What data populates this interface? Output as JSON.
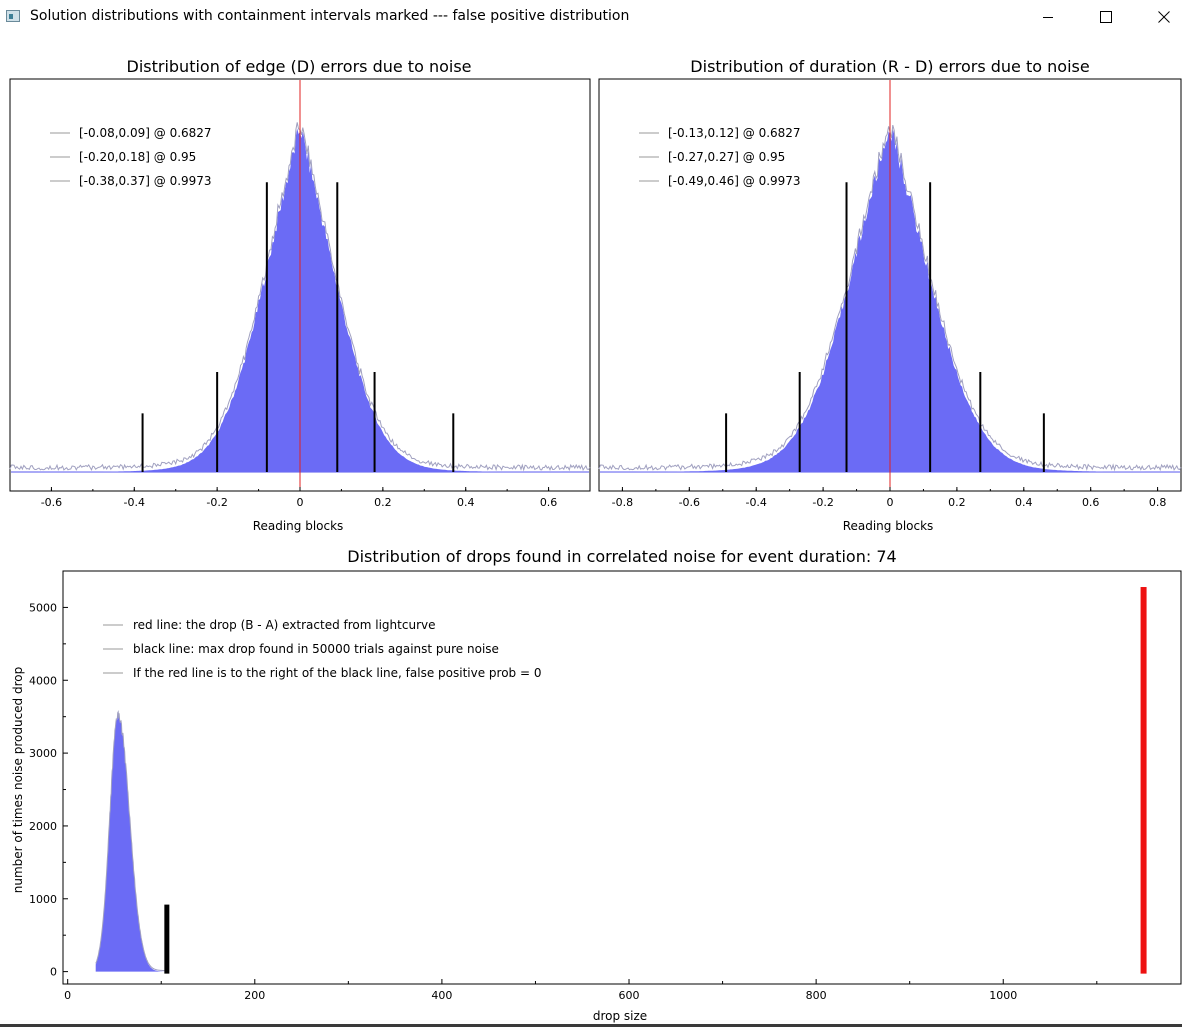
{
  "window": {
    "title": "Solution distributions with containment intervals marked --- false positive distribution",
    "controls": [
      "minimize-icon",
      "maximize-icon",
      "close-icon"
    ]
  },
  "chart_data": [
    {
      "type": "area",
      "title": "Distribution of edge (D) errors due to noise",
      "xlabel": "Reading blocks",
      "ylabel": "",
      "xlim": [
        -0.7,
        0.7
      ],
      "xticks": [
        "-0.6",
        "-0.4",
        "-0.2",
        "0",
        "0.2",
        "0.4",
        "0.6"
      ],
      "yticks": [],
      "legend_position": "top-left",
      "legend": [
        "[-0.08,0.09] @ 0.6827",
        "[-0.20,0.18] @ 0.95",
        "[-0.38,0.37] @ 0.9973"
      ],
      "distribution": {
        "center": 0.0,
        "sigma": 0.1,
        "peak": 1.0
      },
      "red_line_x": 0.0,
      "interval_lines": [
        {
          "x": -0.08,
          "height": 0.84
        },
        {
          "x": 0.09,
          "height": 0.84
        },
        {
          "x": -0.2,
          "height": 0.29
        },
        {
          "x": 0.18,
          "height": 0.29
        },
        {
          "x": -0.38,
          "height": 0.17
        },
        {
          "x": 0.37,
          "height": 0.17
        }
      ],
      "colors": {
        "fill": "#6b6bf5",
        "edge": "#a0a0c0",
        "interval": "#000000",
        "red_line": "#e02020",
        "baseline": "#5555ee"
      }
    },
    {
      "type": "area",
      "title": "Distribution of duration (R - D) errors due to noise",
      "xlabel": "Reading blocks",
      "ylabel": "",
      "xlim": [
        -0.87,
        0.87
      ],
      "xticks": [
        "-0.8",
        "-0.6",
        "-0.4",
        "-0.2",
        "0",
        "0.2",
        "0.4",
        "0.6",
        "0.8"
      ],
      "yticks": [],
      "legend_position": "top-left",
      "legend": [
        "[-0.13,0.12] @ 0.6827",
        "[-0.27,0.27] @ 0.95",
        "[-0.49,0.46] @ 0.9973"
      ],
      "distribution": {
        "center": 0.0,
        "sigma": 0.14,
        "peak": 1.0
      },
      "red_line_x": 0.0,
      "interval_lines": [
        {
          "x": -0.13,
          "height": 0.84
        },
        {
          "x": 0.12,
          "height": 0.84
        },
        {
          "x": -0.27,
          "height": 0.29
        },
        {
          "x": 0.27,
          "height": 0.29
        },
        {
          "x": -0.49,
          "height": 0.17
        },
        {
          "x": 0.46,
          "height": 0.17
        }
      ],
      "colors": {
        "fill": "#6b6bf5",
        "edge": "#a0a0c0",
        "interval": "#000000",
        "red_line": "#e02020",
        "baseline": "#5555ee"
      }
    },
    {
      "type": "bar",
      "title": "Distribution of drops found in correlated noise for event duration: 74",
      "xlabel": "drop size",
      "ylabel": "number of times noise produced drop",
      "xlim": [
        -5,
        1190
      ],
      "ylim": [
        -170,
        5500
      ],
      "xticks": [
        0,
        200,
        400,
        600,
        800,
        1000
      ],
      "yticks": [
        0,
        1000,
        2000,
        3000,
        4000,
        5000
      ],
      "legend_position": "top-left",
      "legend": [
        "red line: the drop (B - A) extracted from lightcurve",
        "black line: max drop found in 50000 trials against pure noise",
        "If the red line is to the right of the black line, false positive prob = 0"
      ],
      "distribution": {
        "center": 54,
        "sigma": 9,
        "peak": 3500,
        "x_min": 30,
        "x_max": 105
      },
      "black_line": {
        "x": 106,
        "height": 920
      },
      "red_line": {
        "x": 1150,
        "height": 5280
      },
      "colors": {
        "fill": "#6b6bf5",
        "edge": "#a0a0c0",
        "black_line": "#000000",
        "red_line": "#ee1111"
      }
    }
  ]
}
